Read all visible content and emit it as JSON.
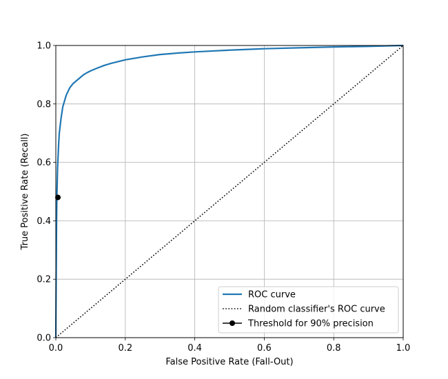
{
  "chart_data": {
    "type": "line",
    "xlabel": "False Positive Rate (Fall-Out)",
    "ylabel": "True Positive Rate (Recall)",
    "xlim": [
      0,
      1
    ],
    "ylim": [
      0,
      1
    ],
    "xticks": [
      "0.0",
      "0.2",
      "0.4",
      "0.6",
      "0.8",
      "1.0"
    ],
    "yticks": [
      "0.0",
      "0.2",
      "0.4",
      "0.6",
      "0.8",
      "1.0"
    ],
    "grid": true,
    "legend_position": "bottom-right",
    "series": [
      {
        "name": "ROC curve",
        "style": "solid",
        "color": "#1f77b4",
        "x": [
          0,
          0.001,
          0.002,
          0.003,
          0.005,
          0.008,
          0.01,
          0.015,
          0.02,
          0.025,
          0.03,
          0.04,
          0.05,
          0.06,
          0.07,
          0.08,
          0.09,
          0.1,
          0.12,
          0.14,
          0.16,
          0.18,
          0.2,
          0.25,
          0.3,
          0.35,
          0.4,
          0.5,
          0.6,
          0.7,
          0.8,
          0.9,
          1.0
        ],
        "y": [
          0,
          0.2,
          0.38,
          0.48,
          0.58,
          0.66,
          0.7,
          0.75,
          0.79,
          0.81,
          0.83,
          0.855,
          0.87,
          0.88,
          0.89,
          0.9,
          0.907,
          0.913,
          0.923,
          0.932,
          0.939,
          0.945,
          0.951,
          0.961,
          0.969,
          0.974,
          0.978,
          0.984,
          0.989,
          0.992,
          0.995,
          0.997,
          1.0
        ]
      },
      {
        "name": "Random classifier's ROC curve",
        "style": "dotted",
        "color": "#000000",
        "x": [
          0,
          1
        ],
        "y": [
          0,
          1
        ]
      },
      {
        "name": "Threshold for 90% precision",
        "style": "marker",
        "color": "#000000",
        "x": [
          0.006
        ],
        "y": [
          0.48
        ]
      }
    ]
  }
}
